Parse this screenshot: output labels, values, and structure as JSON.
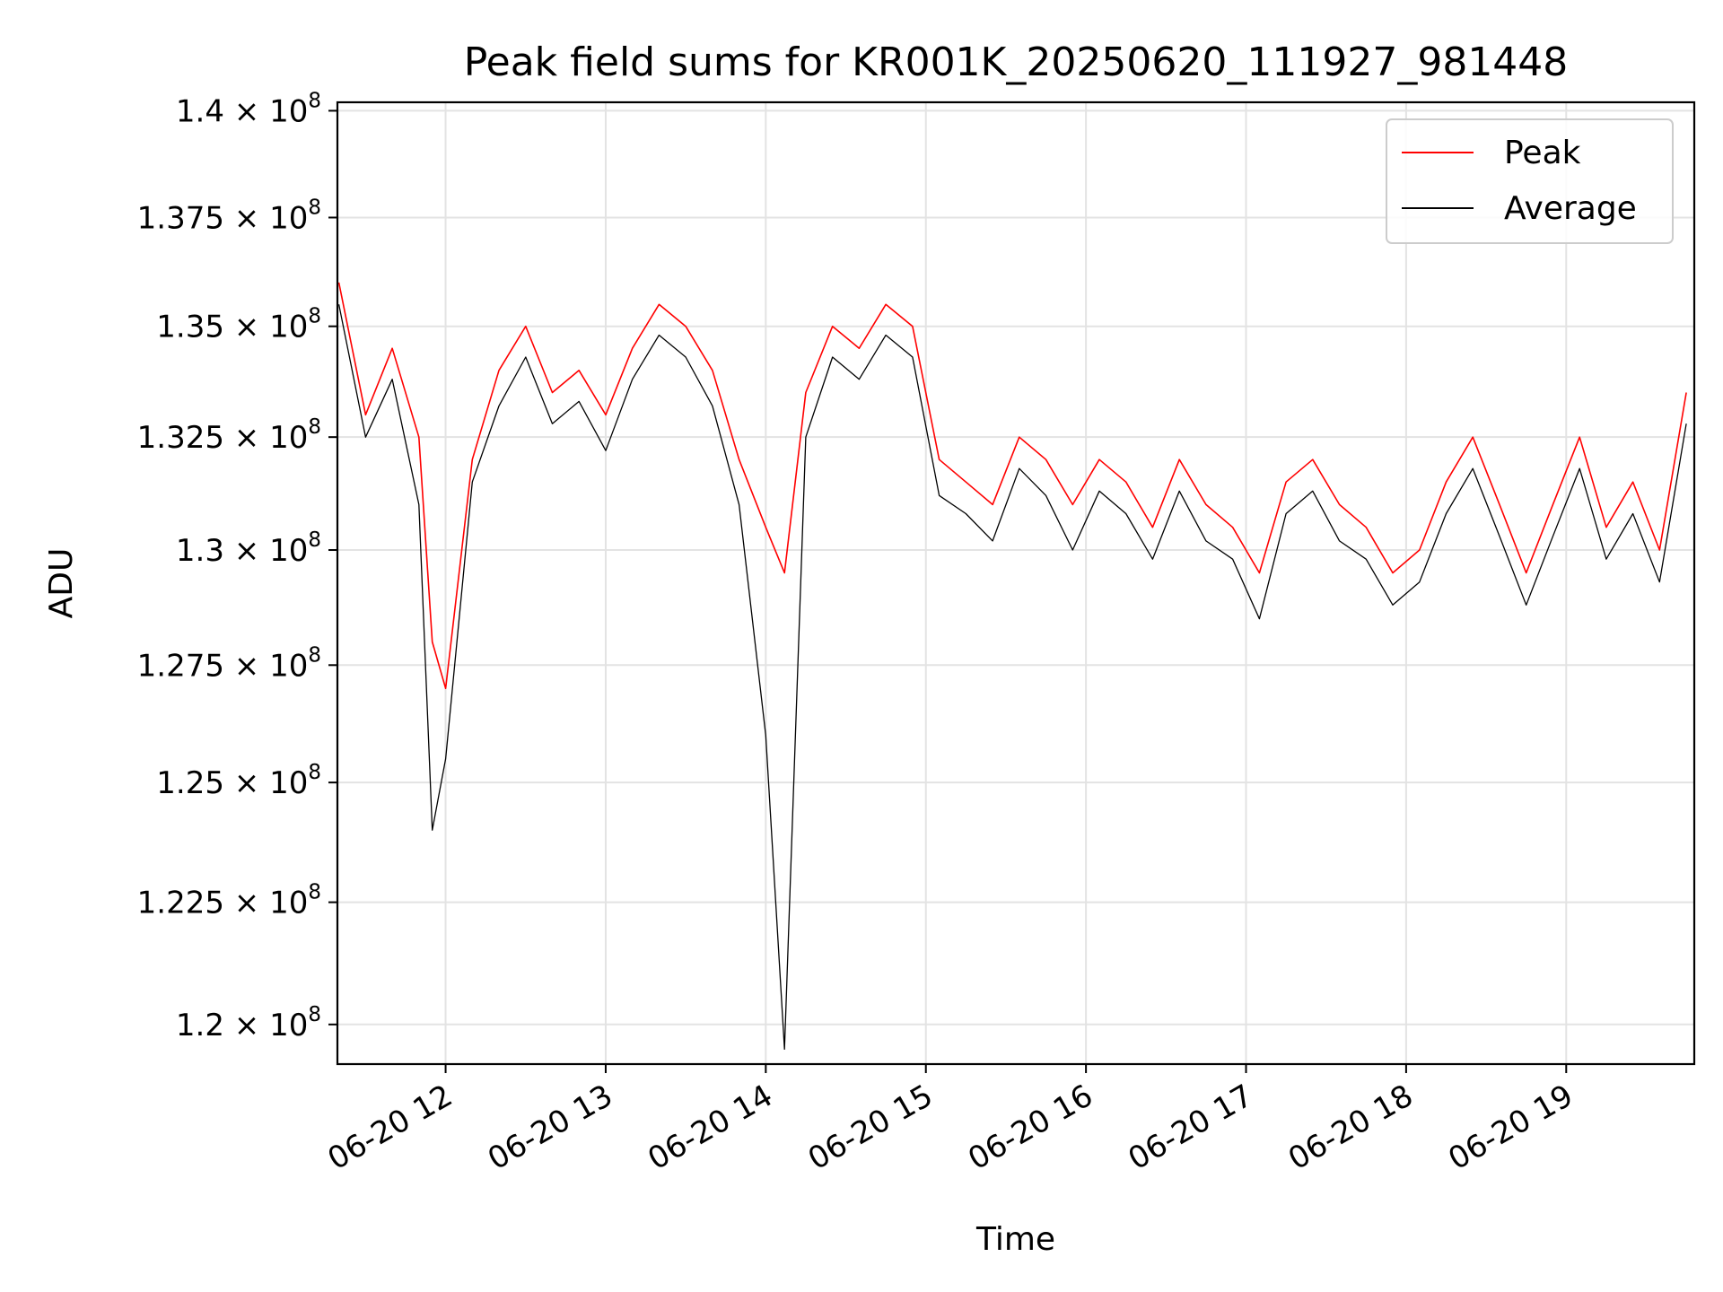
{
  "chart_data": {
    "type": "line",
    "title": "Peak field sums for KR001K_20250620_111927_981448",
    "xlabel": "Time",
    "ylabel": "ADU",
    "y_scale": "log",
    "x_range": [
      "2025-06-20 11:19:27",
      "2025-06-20 19:48:00"
    ],
    "ylim": [
      119200000,
      140200000
    ],
    "x_ticks": [
      {
        "label": "06-20 12",
        "time": "2025-06-20 12:00"
      },
      {
        "label": "06-20 13",
        "time": "2025-06-20 13:00"
      },
      {
        "label": "06-20 14",
        "time": "2025-06-20 14:00"
      },
      {
        "label": "06-20 15",
        "time": "2025-06-20 15:00"
      },
      {
        "label": "06-20 16",
        "time": "2025-06-20 16:00"
      },
      {
        "label": "06-20 17",
        "time": "2025-06-20 17:00"
      },
      {
        "label": "06-20 18",
        "time": "2025-06-20 18:00"
      },
      {
        "label": "06-20 19",
        "time": "2025-06-20 19:00"
      }
    ],
    "y_ticks": [
      {
        "value": 120000000,
        "mantissa": "1.2"
      },
      {
        "value": 122500000,
        "mantissa": "1.225"
      },
      {
        "value": 125000000,
        "mantissa": "1.25"
      },
      {
        "value": 127500000,
        "mantissa": "1.275"
      },
      {
        "value": 130000000,
        "mantissa": "1.3"
      },
      {
        "value": 132500000,
        "mantissa": "1.325"
      },
      {
        "value": 135000000,
        "mantissa": "1.35"
      },
      {
        "value": 137500000,
        "mantissa": "1.375"
      },
      {
        "value": 140000000,
        "mantissa": "1.4"
      }
    ],
    "tick_base": "10",
    "tick_exponent": "8",
    "grid": true,
    "legend_position": "top-right",
    "series": [
      {
        "name": "Peak",
        "color": "#ff0000",
        "x": [
          "2025-06-20 11:20",
          "2025-06-20 11:30",
          "2025-06-20 11:40",
          "2025-06-20 11:50",
          "2025-06-20 11:55",
          "2025-06-20 12:00",
          "2025-06-20 12:10",
          "2025-06-20 12:20",
          "2025-06-20 12:30",
          "2025-06-20 12:40",
          "2025-06-20 12:50",
          "2025-06-20 13:00",
          "2025-06-20 13:10",
          "2025-06-20 13:20",
          "2025-06-20 13:30",
          "2025-06-20 13:40",
          "2025-06-20 13:50",
          "2025-06-20 14:00",
          "2025-06-20 14:07",
          "2025-06-20 14:15",
          "2025-06-20 14:25",
          "2025-06-20 14:35",
          "2025-06-20 14:45",
          "2025-06-20 14:55",
          "2025-06-20 15:05",
          "2025-06-20 15:15",
          "2025-06-20 15:25",
          "2025-06-20 15:35",
          "2025-06-20 15:45",
          "2025-06-20 15:55",
          "2025-06-20 16:05",
          "2025-06-20 16:15",
          "2025-06-20 16:25",
          "2025-06-20 16:35",
          "2025-06-20 16:45",
          "2025-06-20 16:55",
          "2025-06-20 17:05",
          "2025-06-20 17:15",
          "2025-06-20 17:25",
          "2025-06-20 17:35",
          "2025-06-20 17:45",
          "2025-06-20 17:55",
          "2025-06-20 18:05",
          "2025-06-20 18:15",
          "2025-06-20 18:25",
          "2025-06-20 18:35",
          "2025-06-20 18:45",
          "2025-06-20 18:55",
          "2025-06-20 19:05",
          "2025-06-20 19:15",
          "2025-06-20 19:25",
          "2025-06-20 19:35",
          "2025-06-20 19:45"
        ],
        "y": [
          136000000,
          133000000,
          134500000,
          132500000,
          128000000,
          127000000,
          132000000,
          134000000,
          135000000,
          133500000,
          134000000,
          133000000,
          134500000,
          135500000,
          135000000,
          134000000,
          132000000,
          130500000,
          129500000,
          133500000,
          135000000,
          134500000,
          135500000,
          135000000,
          132000000,
          131500000,
          131000000,
          132500000,
          132000000,
          131000000,
          132000000,
          131500000,
          130500000,
          132000000,
          131000000,
          130500000,
          129500000,
          131500000,
          132000000,
          131000000,
          130500000,
          129500000,
          130000000,
          131500000,
          132500000,
          131000000,
          129500000,
          131000000,
          132500000,
          130500000,
          131500000,
          130000000,
          133500000
        ]
      },
      {
        "name": "Average",
        "color": "#000000",
        "x": [
          "2025-06-20 11:20",
          "2025-06-20 11:30",
          "2025-06-20 11:40",
          "2025-06-20 11:50",
          "2025-06-20 11:55",
          "2025-06-20 12:00",
          "2025-06-20 12:10",
          "2025-06-20 12:20",
          "2025-06-20 12:30",
          "2025-06-20 12:40",
          "2025-06-20 12:50",
          "2025-06-20 13:00",
          "2025-06-20 13:10",
          "2025-06-20 13:20",
          "2025-06-20 13:30",
          "2025-06-20 13:40",
          "2025-06-20 13:50",
          "2025-06-20 14:00",
          "2025-06-20 14:07",
          "2025-06-20 14:15",
          "2025-06-20 14:25",
          "2025-06-20 14:35",
          "2025-06-20 14:45",
          "2025-06-20 14:55",
          "2025-06-20 15:05",
          "2025-06-20 15:15",
          "2025-06-20 15:25",
          "2025-06-20 15:35",
          "2025-06-20 15:45",
          "2025-06-20 15:55",
          "2025-06-20 16:05",
          "2025-06-20 16:15",
          "2025-06-20 16:25",
          "2025-06-20 16:35",
          "2025-06-20 16:45",
          "2025-06-20 16:55",
          "2025-06-20 17:05",
          "2025-06-20 17:15",
          "2025-06-20 17:25",
          "2025-06-20 17:35",
          "2025-06-20 17:45",
          "2025-06-20 17:55",
          "2025-06-20 18:05",
          "2025-06-20 18:15",
          "2025-06-20 18:25",
          "2025-06-20 18:35",
          "2025-06-20 18:45",
          "2025-06-20 18:55",
          "2025-06-20 19:05",
          "2025-06-20 19:15",
          "2025-06-20 19:25",
          "2025-06-20 19:35",
          "2025-06-20 19:45"
        ],
        "y": [
          135500000,
          132500000,
          133800000,
          131000000,
          124000000,
          125500000,
          131500000,
          133200000,
          134300000,
          132800000,
          133300000,
          132200000,
          133800000,
          134800000,
          134300000,
          133200000,
          131000000,
          126000000,
          119500000,
          132500000,
          134300000,
          133800000,
          134800000,
          134300000,
          131200000,
          130800000,
          130200000,
          131800000,
          131200000,
          130000000,
          131300000,
          130800000,
          129800000,
          131300000,
          130200000,
          129800000,
          128500000,
          130800000,
          131300000,
          130200000,
          129800000,
          128800000,
          129300000,
          130800000,
          131800000,
          130300000,
          128800000,
          130300000,
          131800000,
          129800000,
          130800000,
          129300000,
          132800000
        ]
      }
    ]
  }
}
